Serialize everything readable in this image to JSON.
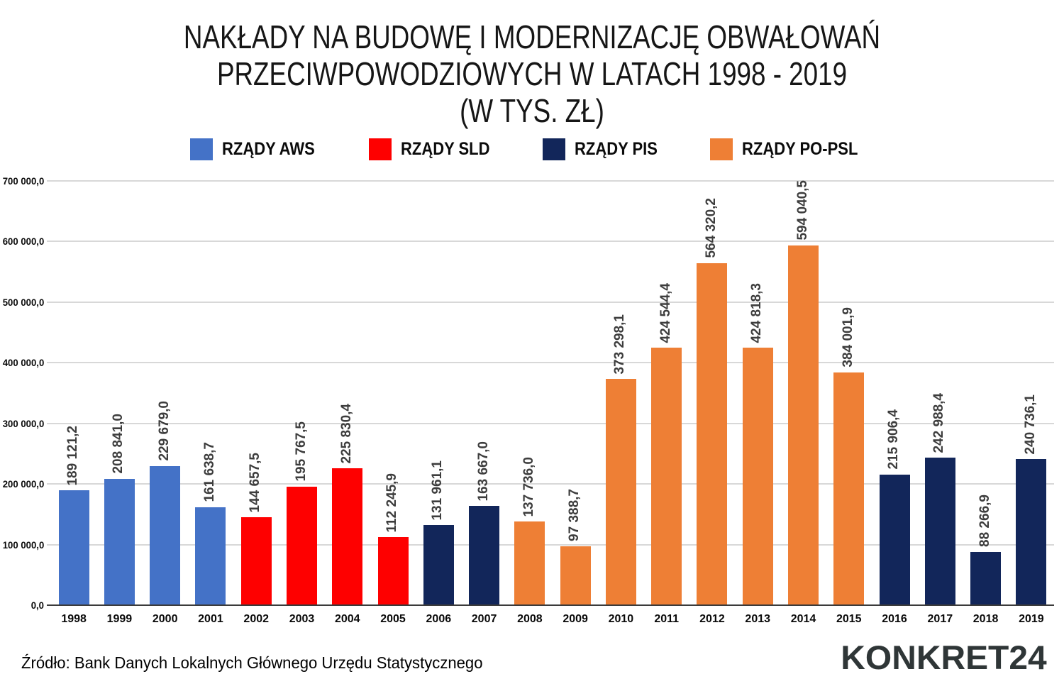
{
  "title": {
    "line1": "NAKŁADY NA BUDOWĘ I MODERNIZACJĘ OBWAŁOWAŃ",
    "line2": "PRZECIWPOWODZIOWYCH W LATACH 1998 - 2019",
    "line3": "(W TYS. ZŁ)"
  },
  "legend": [
    {
      "label": "RZĄDY AWS",
      "color": "#4472C7"
    },
    {
      "label": "RZĄDY SLD",
      "color": "#FE0000"
    },
    {
      "label": "RZĄDY PIS",
      "color": "#12265A"
    },
    {
      "label": "RZĄDY PO-PSL",
      "color": "#EE7F35"
    }
  ],
  "chart_data": {
    "type": "bar",
    "title": "NAKŁADY NA BUDOWĘ I MODERNIZACJĘ OBWAŁOWAŃ PRZECIWPOWODZIOWYCH W LATACH 1998 - 2019 (W TYS. ZŁ)",
    "xlabel": "",
    "ylabel": "",
    "ylim": [
      0,
      700000
    ],
    "grid": true,
    "legend_position": "top",
    "yticks": [
      0,
      100000,
      200000,
      300000,
      400000,
      500000,
      600000,
      700000
    ],
    "ytick_labels": [
      "0,0",
      "100 000,0",
      "200 000,0",
      "300 000,0",
      "400 000,0",
      "500 000,0",
      "600 000,0",
      "700 000,0"
    ],
    "categories": [
      "1998",
      "1999",
      "2000",
      "2001",
      "2002",
      "2003",
      "2004",
      "2005",
      "2006",
      "2007",
      "2008",
      "2009",
      "2010",
      "2011",
      "2012",
      "2013",
      "2014",
      "2015",
      "2016",
      "2017",
      "2018",
      "2019"
    ],
    "values": [
      189121.2,
      208841.0,
      229679.0,
      161638.7,
      144657.5,
      195767.5,
      225830.4,
      112245.9,
      131961.1,
      163667.0,
      137736.0,
      97388.7,
      373298.1,
      424544.4,
      564320.2,
      424818.3,
      594040.5,
      384001.9,
      215906.4,
      242988.4,
      88266.9,
      240736.1
    ],
    "value_labels": [
      "189 121,2",
      "208 841,0",
      "229 679,0",
      "161 638,7",
      "144 657,5",
      "195 767,5",
      "225 830,4",
      "112 245,9",
      "131 961,1",
      "163 667,0",
      "137 736,0",
      "97 388,7",
      "373 298,1",
      "424 544,4",
      "564 320,2",
      "424 818,3",
      "594 040,5",
      "384 001,9",
      "215 906,4",
      "242 988,4",
      "88 266,9",
      "240 736,1"
    ],
    "groups": [
      "AWS",
      "AWS",
      "AWS",
      "AWS",
      "SLD",
      "SLD",
      "SLD",
      "SLD",
      "PIS",
      "PIS",
      "PO-PSL",
      "PO-PSL",
      "PO-PSL",
      "PO-PSL",
      "PO-PSL",
      "PO-PSL",
      "PO-PSL",
      "PO-PSL",
      "PIS",
      "PIS",
      "PIS",
      "PIS"
    ],
    "group_colors": {
      "AWS": "#4472C7",
      "SLD": "#FE0000",
      "PIS": "#12265A",
      "PO-PSL": "#EE7F35"
    }
  },
  "footer": {
    "source": "Źródło: Bank Danych Lokalnych Głównego Urzędu Statystycznego",
    "logo": "KONKRET24"
  }
}
